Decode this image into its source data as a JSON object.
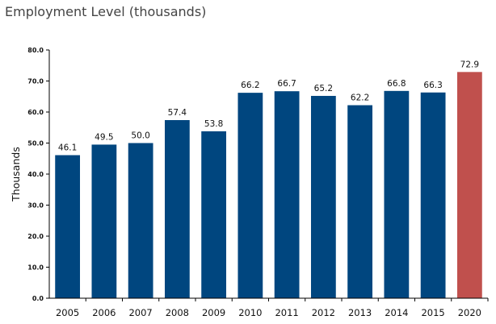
{
  "chart_data": {
    "type": "bar",
    "title": "Employment Level (thousands)",
    "ylabel": "Thousands",
    "xlabel": "",
    "categories": [
      "2005",
      "2006",
      "2007",
      "2008",
      "2009",
      "2010",
      "2011",
      "2012",
      "2013",
      "2014",
      "2015",
      "2020"
    ],
    "values": [
      46.1,
      49.5,
      50.0,
      57.4,
      53.8,
      66.2,
      66.7,
      65.2,
      62.2,
      66.8,
      66.3,
      72.9
    ],
    "data_labels": [
      "46.1",
      "49.5",
      "50.0",
      "57.4",
      "53.8",
      "66.2",
      "66.7",
      "65.2",
      "62.2",
      "66.8",
      "66.3",
      "72.9"
    ],
    "ylim": [
      0,
      80
    ],
    "yticks": [
      "0.0",
      "10.0",
      "20.0",
      "30.0",
      "40.0",
      "50.0",
      "60.0",
      "70.0",
      "80.0"
    ],
    "grid": false,
    "colors": {
      "default_bar": "#00467f",
      "highlight_bar": "#c0504d"
    },
    "highlight_index": 11
  }
}
